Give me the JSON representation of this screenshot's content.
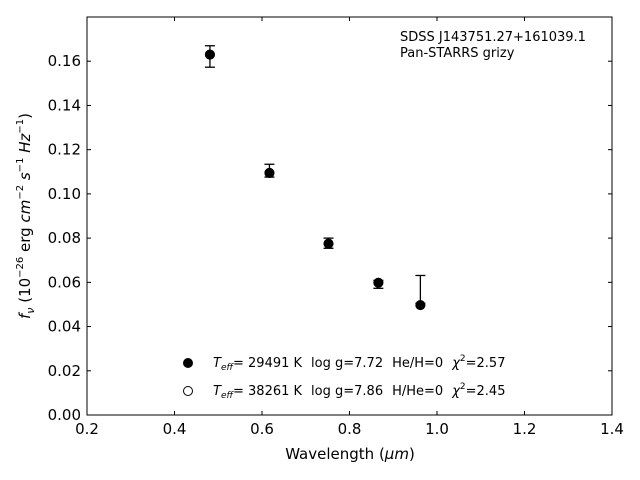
{
  "chart_data": {
    "type": "scatter",
    "xlabel_main": "Wavelength (",
    "xlabel_sym": "μm",
    "xlabel_end": ")",
    "ylabel_parts": {
      "f": "f",
      "nu": "ν",
      "open": " (10",
      "exp1": "−26",
      "erg": " erg ",
      "cm": "cm",
      "exp2": "−2",
      "sp1": " ",
      "s": "s",
      "exp3": "−1",
      "sp2": " ",
      "hz": "Hz",
      "exp4": "−1",
      "close": ")"
    },
    "xlim": [
      0.2,
      1.4
    ],
    "ylim": [
      0.0,
      0.18
    ],
    "xticks": [
      "0.2",
      "0.4",
      "0.6",
      "0.8",
      "1.0",
      "1.2",
      "1.4"
    ],
    "yticks": [
      "0.00",
      "0.02",
      "0.04",
      "0.06",
      "0.08",
      "0.10",
      "0.12",
      "0.14",
      "0.16"
    ],
    "annotations": [
      "SDSS J143751.27+161039.1",
      "Pan-STARRS grizy"
    ],
    "observed": {
      "x": [
        0.481,
        0.617,
        0.752,
        0.866,
        0.962
      ],
      "y": [
        0.1625,
        0.1119,
        0.0777,
        0.0596,
        0.0524
      ],
      "yerr_low": [
        0.0052,
        0.0043,
        0.0023,
        0.0023,
        0.0019
      ],
      "yerr_high": [
        0.0045,
        0.0015,
        0.0023,
        0.0013,
        0.0107
      ]
    },
    "series": [
      {
        "marker": "filled",
        "x": [
          0.481,
          0.617,
          0.752,
          0.866,
          0.962
        ],
        "y": [
          0.163,
          0.1095,
          0.0775,
          0.0598,
          0.0497
        ],
        "legend": {
          "T": "T",
          "eff": "eff",
          "teff": "= 29491 K",
          "logg": "log g=7.72",
          "comp": "He/H=0",
          "chi": "χ",
          "sq": "2",
          "chival": "=2.57"
        }
      },
      {
        "marker": "open",
        "x": [
          0.481,
          0.617,
          0.752,
          0.866,
          0.962
        ],
        "y": [
          0.163,
          0.1095,
          0.0775,
          0.0598,
          0.0497
        ],
        "legend": {
          "T": "T",
          "eff": "eff",
          "teff": "= 38261 K",
          "logg": "log g=7.86",
          "comp": "H/He=0",
          "chi": "χ",
          "sq": "2",
          "chival": "=2.45"
        }
      }
    ],
    "legend_position": "bottom-center",
    "grid": false
  }
}
